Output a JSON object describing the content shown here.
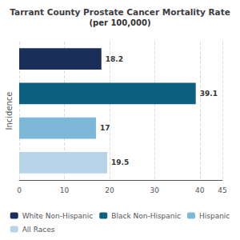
{
  "chart_data": {
    "type": "bar",
    "orientation": "horizontal",
    "title": "Tarrant County Prostate Cancer Mortality Rate",
    "subtitle": "(per 100,000)",
    "ylabel": "Incidence",
    "categories": [
      "White Non-Hispanic",
      "Black Non-Hispanic",
      "Hispanic",
      "All Races"
    ],
    "values": [
      18.2,
      39.1,
      17.0,
      19.5
    ],
    "colors": [
      "#1a2e5a",
      "#0e6080",
      "#7db8d8",
      "#b8d4e8"
    ],
    "xlim": [
      0,
      45
    ],
    "xticks": [
      0,
      10,
      20,
      30,
      40
    ],
    "grid": true,
    "legend": "bottom",
    "data_labels": true,
    "tick_labels": "x"
  }
}
